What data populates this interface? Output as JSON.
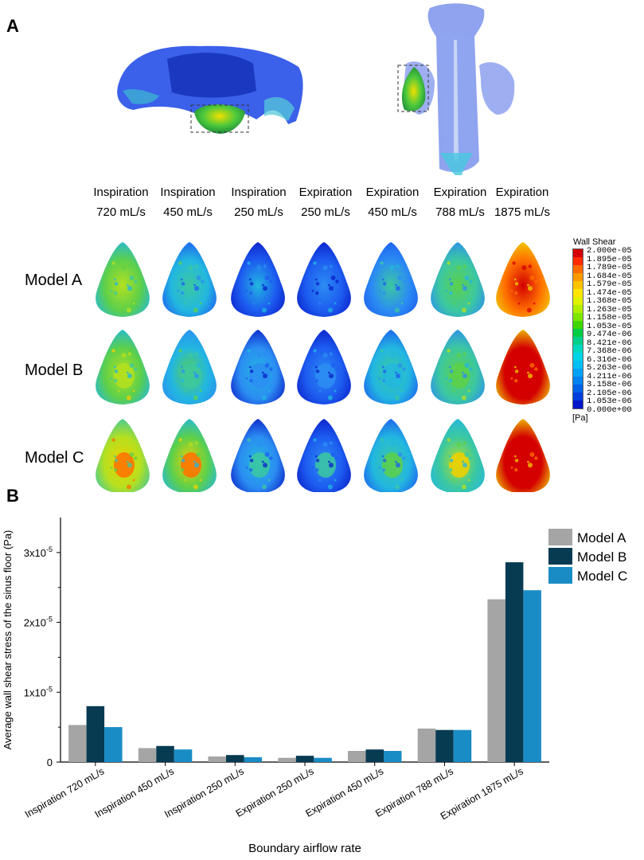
{
  "panel_a_label": "A",
  "panel_b_label": "B",
  "conditions": [
    {
      "phase": "Inspiration",
      "rate": "720 mL/s"
    },
    {
      "phase": "Inspiration",
      "rate": "450 mL/s"
    },
    {
      "phase": "Inspiration",
      "rate": "250 mL/s"
    },
    {
      "phase": "Expiration",
      "rate": "250 mL/s"
    },
    {
      "phase": "Expiration",
      "rate": "450 mL/s"
    },
    {
      "phase": "Expiration",
      "rate": "788 mL/s"
    },
    {
      "phase": "Expiration",
      "rate": "1875 mL/s"
    }
  ],
  "models": [
    "Model A",
    "Model B",
    "Model C"
  ],
  "colorbar": {
    "title": "Wall Shear",
    "unit": "[Pa]",
    "ticks": [
      "2.000e-05",
      "1.895e-05",
      "1.789e-05",
      "1.684e-05",
      "1.579e-05",
      "1.474e-05",
      "1.368e-05",
      "1.263e-05",
      "1.158e-05",
      "1.053e-05",
      "9.474e-06",
      "8.421e-06",
      "7.368e-06",
      "6.316e-06",
      "5.263e-06",
      "4.211e-06",
      "3.158e-06",
      "2.105e-06",
      "1.053e-06",
      "0.000e+00"
    ],
    "colors": [
      "#d40000",
      "#ff2a00",
      "#ff6a00",
      "#ff9a00",
      "#ffc400",
      "#ffe600",
      "#dff200",
      "#b2ee00",
      "#7ee600",
      "#3ed800",
      "#00cc44",
      "#00d08a",
      "#00d8c0",
      "#00d4e6",
      "#00bff5",
      "#00a2f5",
      "#0082ee",
      "#0060e6",
      "#003cdc",
      "#0014c8"
    ]
  },
  "panel_a_heat_intensity": [
    [
      0.5,
      0.35,
      0.18,
      0.15,
      0.28,
      0.45,
      0.88
    ],
    [
      0.55,
      0.38,
      0.2,
      0.17,
      0.3,
      0.45,
      0.95
    ],
    [
      0.62,
      0.58,
      0.22,
      0.16,
      0.3,
      0.48,
      0.9
    ]
  ],
  "chart_data": {
    "type": "bar",
    "categories": [
      "Inspiration 720 mL/s",
      "Inspiration 450 mL/s",
      "Inspiration 250 mL/s",
      "Expiration 250 mL/s",
      "Expiration 450 mL/s",
      "Expiration 788 mL/s",
      "Expiration 1875 mL/s"
    ],
    "series": [
      {
        "name": "Model A",
        "color": "#a5a5a5",
        "values": [
          5.3e-06,
          2e-06,
          8e-07,
          6e-07,
          1.6e-06,
          4.8e-06,
          2.33e-05
        ]
      },
      {
        "name": "Model B",
        "color": "#073b51",
        "values": [
          8e-06,
          2.3e-06,
          1e-06,
          9e-07,
          1.8e-06,
          4.6e-06,
          2.86e-05
        ]
      },
      {
        "name": "Model C",
        "color": "#1a8cc5",
        "values": [
          5e-06,
          1.8e-06,
          7e-07,
          6e-07,
          1.6e-06,
          4.6e-06,
          2.46e-05
        ]
      }
    ],
    "ylim": [
      0,
      3.5e-05
    ],
    "yticks": [
      {
        "value": 0,
        "label": "0",
        "exp": ""
      },
      {
        "value": 1e-05,
        "label": "1x10",
        "exp": "-5"
      },
      {
        "value": 2e-05,
        "label": "2x10",
        "exp": "-5"
      },
      {
        "value": 3e-05,
        "label": "3x10",
        "exp": "-5"
      }
    ],
    "ylabel": "Average wall shear stress of the sinus floor (Pa)",
    "xlabel": "Boundary airflow rate",
    "legend_position": "top-right"
  }
}
